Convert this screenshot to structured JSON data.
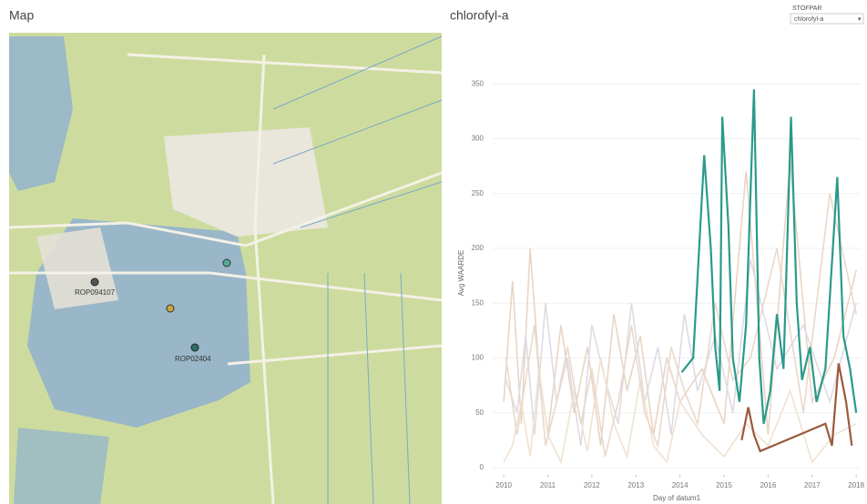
{
  "map": {
    "title": "Map",
    "stations": [
      {
        "label": "ROP094107",
        "color": "#555555"
      },
      {
        "label": "ROP02404",
        "color": "#2e6e66"
      }
    ]
  },
  "filter": {
    "label": "STOFPAR",
    "selected": "chlorofyl-a"
  },
  "chart_data": {
    "type": "line",
    "title": "chlorofyl-a",
    "y_label": "Avg WAARDE",
    "x_label": "Day of datum1",
    "xlim": [
      2009.75,
      2018.1
    ],
    "xticks": [
      2010,
      2011,
      2012,
      2013,
      2014,
      2015,
      2016,
      2017,
      2018
    ],
    "ylim": [
      0,
      390
    ],
    "yticks": [
      0,
      50,
      100,
      150,
      200,
      250,
      300,
      350
    ],
    "grid": true,
    "series": [
      {
        "color": "#e8d5c4",
        "x": [
          2010.0,
          2010.2,
          2010.4,
          2010.6,
          2010.8,
          2011.0,
          2011.3,
          2011.6,
          2011.9,
          2012.2,
          2012.5,
          2012.8,
          2013.1,
          2013.4,
          2013.7,
          2014.0,
          2014.5,
          2015.0,
          2015.5,
          2016.0,
          2016.5,
          2017.0,
          2017.5,
          2018.0
        ],
        "values": [
          60,
          170,
          40,
          200,
          90,
          30,
          130,
          50,
          110,
          20,
          140,
          70,
          120,
          30,
          100,
          60,
          90,
          40,
          270,
          30,
          280,
          60,
          100,
          180
        ]
      },
      {
        "color": "#dedbe3",
        "x": [
          2010.05,
          2010.3,
          2010.5,
          2010.7,
          2010.95,
          2011.2,
          2011.45,
          2011.75,
          2012.0,
          2012.3,
          2012.6,
          2012.9,
          2013.2,
          2013.5,
          2013.8,
          2014.1,
          2014.4,
          2014.8,
          2015.2,
          2015.6,
          2016.2,
          2016.8,
          2017.4,
          2018.0
        ],
        "values": [
          80,
          50,
          120,
          30,
          150,
          60,
          100,
          20,
          130,
          80,
          40,
          150,
          60,
          110,
          30,
          140,
          70,
          120,
          50,
          190,
          90,
          130,
          60,
          150
        ]
      },
      {
        "color": "#f0e2d2",
        "x": [
          2010.0,
          2010.2,
          2010.4,
          2010.6,
          2010.8,
          2011.0,
          2011.3,
          2011.6,
          2011.9,
          2012.2,
          2012.5,
          2012.8,
          2013.1,
          2013.4,
          2013.7,
          2014.0,
          2014.5,
          2015.0,
          2015.5,
          2016.0,
          2016.5,
          2017.0,
          2017.5,
          2018.0
        ],
        "values": [
          5,
          20,
          60,
          10,
          90,
          30,
          5,
          70,
          15,
          100,
          40,
          10,
          80,
          20,
          5,
          60,
          30,
          10,
          40,
          20,
          70,
          5,
          30,
          40
        ]
      },
      {
        "color": "#ead8ca",
        "x": [
          2010.05,
          2010.3,
          2010.5,
          2010.7,
          2010.95,
          2011.2,
          2011.45,
          2011.75,
          2012.0,
          2012.3,
          2012.6,
          2012.9,
          2013.2,
          2013.5,
          2013.8,
          2014.1,
          2014.4,
          2014.8,
          2015.2,
          2015.6,
          2016.2,
          2016.8,
          2017.4,
          2018.0
        ],
        "values": [
          100,
          30,
          80,
          130,
          20,
          60,
          110,
          40,
          90,
          10,
          60,
          130,
          50,
          20,
          110,
          70,
          40,
          150,
          80,
          100,
          200,
          50,
          250,
          140
        ]
      },
      {
        "color": "#2a9a8a",
        "x": [
          2014.04,
          2014.3,
          2014.55,
          2014.7,
          2014.8,
          2014.9,
          2014.96,
          2015.1,
          2015.2,
          2015.35,
          2015.5,
          2015.68,
          2015.8,
          2015.9,
          2016.05,
          2016.2,
          2016.35,
          2016.52,
          2016.65,
          2016.77,
          2016.95,
          2017.1,
          2017.3,
          2017.57,
          2017.71,
          2017.86,
          2018.0
        ],
        "values": [
          87,
          100,
          285,
          200,
          110,
          70,
          320,
          220,
          100,
          60,
          130,
          345,
          100,
          40,
          70,
          140,
          90,
          320,
          150,
          80,
          110,
          60,
          90,
          265,
          120,
          90,
          50
        ]
      },
      {
        "color": "#9a5a3c",
        "x": [
          2015.4,
          2015.55,
          2015.68,
          2015.82,
          2017.3,
          2017.45,
          2017.6,
          2017.77,
          2017.9
        ],
        "values": [
          25,
          55,
          30,
          15,
          40,
          20,
          95,
          60,
          20
        ]
      }
    ]
  }
}
